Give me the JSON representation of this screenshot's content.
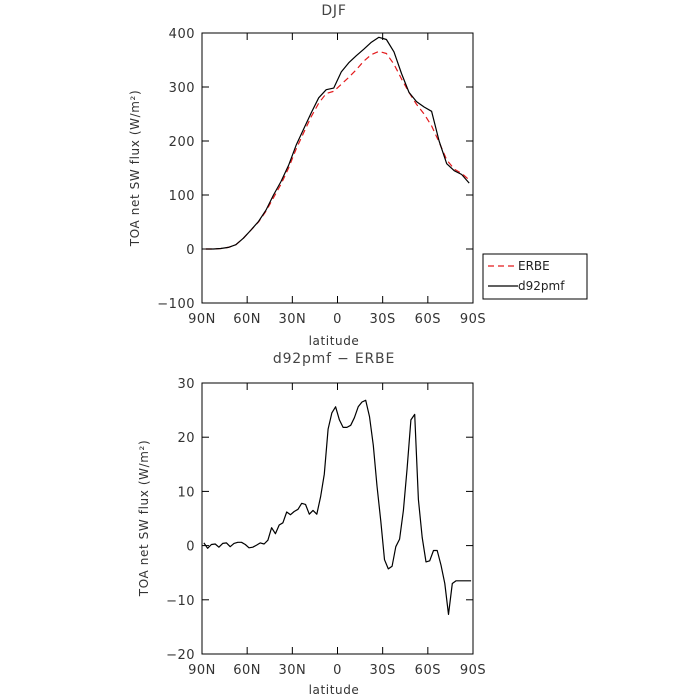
{
  "chart_data": [
    {
      "type": "line",
      "title": "DJF",
      "xlabel": "latitude",
      "ylabel": "TOA net SW flux (W/m²)",
      "xlim": [
        90,
        -90
      ],
      "ylim": [
        -100,
        400
      ],
      "x_ticks": [
        90,
        60,
        30,
        0,
        -30,
        -60,
        -90
      ],
      "x_tick_labels": [
        "90N",
        "60N",
        "30N",
        "0",
        "30S",
        "60S",
        "90S"
      ],
      "y_ticks": [
        -100,
        0,
        100,
        200,
        300,
        400
      ],
      "y_tick_labels": [
        "−100",
        "0",
        "100",
        "200",
        "300",
        "400"
      ],
      "grid": false,
      "legend": {
        "position": "right-outside",
        "entries": [
          "ERBE",
          "d92pmf"
        ]
      },
      "series": [
        {
          "name": "ERBE",
          "color": "#e31a1c",
          "dash": "dashed",
          "x": [
            87.5,
            82.5,
            77.5,
            72.5,
            67.5,
            62.5,
            57.5,
            52.5,
            47.5,
            42.5,
            37.5,
            32.5,
            27.5,
            22.5,
            17.5,
            12.5,
            7.5,
            2.5,
            -2.5,
            -7.5,
            -12.5,
            -17.5,
            -22.5,
            -27.5,
            -32.5,
            -37.5,
            -42.5,
            -47.5,
            -52.5,
            -57.5,
            -62.5,
            -67.5,
            -72.5,
            -77.5,
            -82.5,
            -87.5
          ],
          "y": [
            0,
            0,
            1,
            3,
            8,
            20,
            35,
            50,
            70,
            95,
            120,
            150,
            185,
            215,
            245,
            270,
            288,
            292,
            305,
            318,
            332,
            348,
            360,
            366,
            362,
            342,
            315,
            290,
            268,
            250,
            228,
            198,
            165,
            148,
            140,
            128
          ]
        },
        {
          "name": "d92pmf",
          "color": "#000000",
          "dash": "solid",
          "x": [
            87.5,
            82.5,
            77.5,
            72.5,
            67.5,
            62.5,
            57.5,
            52.5,
            47.5,
            42.5,
            37.5,
            32.5,
            27.5,
            22.5,
            17.5,
            12.5,
            7.5,
            2.5,
            -2.5,
            -7.5,
            -12.5,
            -17.5,
            -22.5,
            -27.5,
            -32.5,
            -37.5,
            -42.5,
            -47.5,
            -52.5,
            -57.5,
            -62.5,
            -67.5,
            -72.5,
            -77.5,
            -82.5,
            -87.5
          ],
          "y": [
            0,
            0,
            1,
            3,
            8,
            20,
            35,
            51,
            72,
            100,
            125,
            155,
            192,
            222,
            252,
            280,
            295,
            298,
            328,
            345,
            358,
            370,
            383,
            392,
            388,
            365,
            325,
            290,
            273,
            263,
            255,
            200,
            158,
            145,
            138,
            122
          ]
        }
      ]
    },
    {
      "type": "line",
      "title": "d92pmf − ERBE",
      "xlabel": "latitude",
      "ylabel": "TOA net SW flux (W/m²)",
      "xlim": [
        90,
        -90
      ],
      "ylim": [
        -20,
        30
      ],
      "x_ticks": [
        90,
        60,
        30,
        0,
        -30,
        -60,
        -90
      ],
      "x_tick_labels": [
        "90N",
        "60N",
        "30N",
        "0",
        "30S",
        "60S",
        "90S"
      ],
      "y_ticks": [
        -20,
        -10,
        0,
        10,
        20,
        30
      ],
      "y_tick_labels": [
        "−20",
        "−10",
        "0",
        "10",
        "20",
        "30"
      ],
      "grid": false,
      "series": [
        {
          "color": "#000000",
          "dash": "solid",
          "x": [
            88.75,
            86.25,
            83.75,
            81.25,
            78.75,
            76.25,
            73.75,
            71.25,
            68.75,
            66.25,
            63.75,
            61.25,
            58.75,
            56.25,
            53.75,
            51.25,
            48.75,
            46.25,
            43.75,
            41.25,
            38.75,
            36.25,
            33.75,
            31.25,
            28.75,
            26.25,
            23.75,
            21.25,
            18.75,
            16.25,
            13.75,
            11.25,
            8.75,
            6.25,
            3.75,
            1.25,
            -1.25,
            -3.75,
            -6.25,
            -8.75,
            -11.25,
            -13.75,
            -16.25,
            -18.75,
            -21.25,
            -23.75,
            -26.25,
            -28.75,
            -31.25,
            -33.75,
            -36.25,
            -38.75,
            -41.25,
            -43.75,
            -46.25,
            -48.75,
            -51.25,
            -53.75,
            -56.25,
            -58.75,
            -61.25,
            -63.75,
            -66.25,
            -68.75,
            -71.25,
            -73.75,
            -76.25,
            -78.75,
            -81.25,
            -83.75,
            -86.25,
            -88.75
          ],
          "y": [
            0.5,
            -0.5,
            0.2,
            0.3,
            -0.3,
            0.4,
            0.5,
            -0.2,
            0.4,
            0.6,
            0.6,
            0.2,
            -0.4,
            -0.3,
            0.1,
            0.5,
            0.3,
            1.0,
            3.3,
            2.2,
            3.8,
            4.2,
            6.2,
            5.7,
            6.3,
            6.7,
            7.8,
            7.6,
            5.8,
            6.5,
            5.8,
            9.0,
            13.2,
            21.5,
            24.5,
            25.6,
            23.2,
            21.8,
            21.8,
            22.2,
            23.6,
            25.6,
            26.5,
            26.8,
            23.8,
            18.5,
            11.0,
            4.5,
            -2.6,
            -4.3,
            -3.8,
            -0.2,
            1.2,
            6.5,
            14.2,
            23.2,
            24.2,
            8.5,
            1.5,
            -3.0,
            -2.8,
            -0.9,
            -0.9,
            -3.6,
            -7.0,
            -12.7,
            -7.0,
            -6.5,
            -6.5,
            -6.5,
            -6.5,
            -6.5
          ]
        }
      ]
    }
  ]
}
